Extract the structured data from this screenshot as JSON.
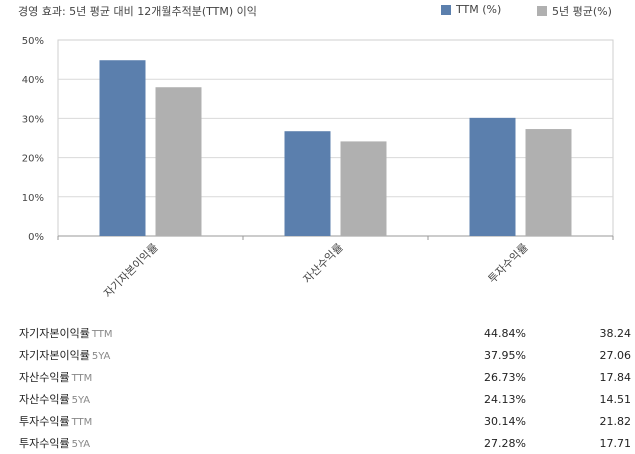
{
  "title": "경영 효과: 5년 평균 대비 12개월추적분(TTM) 이익",
  "legend": [
    {
      "label": "TTM (%)",
      "color": "#5b7fad"
    },
    {
      "label": "5년 평균(%)",
      "color": "#b0b0b0"
    }
  ],
  "chart_data": {
    "type": "bar",
    "title": "경영 효과: 5년 평균 대비 12개월추적분(TTM) 이익",
    "categories": [
      "자기자본이익률",
      "자산수익률",
      "투자수익률"
    ],
    "series": [
      {
        "name": "TTM (%)",
        "values": [
          44.84,
          26.73,
          30.14
        ],
        "color": "#5b7fad"
      },
      {
        "name": "5년 평균(%)",
        "values": [
          37.95,
          24.13,
          27.28
        ],
        "color": "#b0b0b0"
      }
    ],
    "ylim": [
      0,
      50
    ],
    "yticks": [
      "0%",
      "10%",
      "20%",
      "30%",
      "40%",
      "50%"
    ],
    "grid": true,
    "legend_position": "top-right"
  },
  "table": {
    "rows": [
      {
        "name": "자기자본이익률",
        "suffix": "TTM",
        "v1": "44.84%",
        "v2": "38.24"
      },
      {
        "name": "자기자본이익률",
        "suffix": "5YA",
        "v1": "37.95%",
        "v2": "27.06"
      },
      {
        "name": "자산수익률",
        "suffix": "TTM",
        "v1": "26.73%",
        "v2": "17.84"
      },
      {
        "name": "자산수익률",
        "suffix": "5YA",
        "v1": "24.13%",
        "v2": "14.51"
      },
      {
        "name": "투자수익률",
        "suffix": "TTM",
        "v1": "30.14%",
        "v2": "21.82"
      },
      {
        "name": "투자수익률",
        "suffix": "5YA",
        "v1": "27.28%",
        "v2": "17.71"
      }
    ]
  }
}
